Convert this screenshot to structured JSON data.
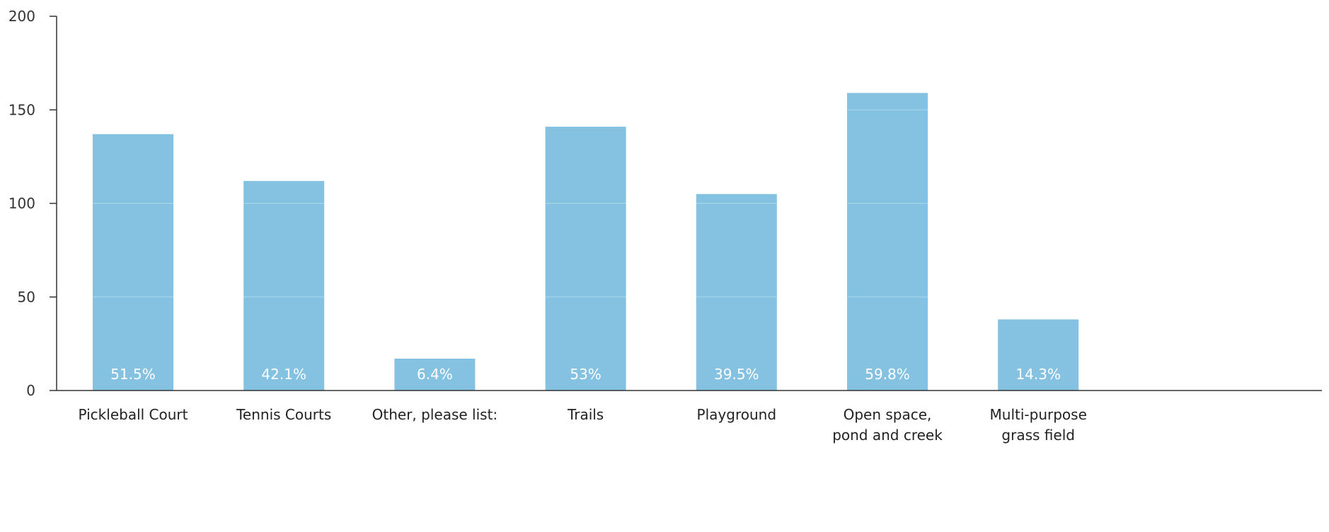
{
  "chart_data": {
    "type": "bar",
    "title": "",
    "xlabel": "",
    "ylabel": "",
    "ylim": [
      0,
      200
    ],
    "yticks": [
      0,
      50,
      100,
      150,
      200
    ],
    "grid": true,
    "legend": "none",
    "bar_color": "#85c2e1",
    "categories": [
      "Pickleball Court",
      "Tennis Courts",
      "Other, please list:",
      "Trails",
      "Playground",
      "Open space,\npond and creek",
      "Multi-purpose\ngrass field"
    ],
    "values": [
      137,
      112,
      17,
      141,
      105,
      159,
      38
    ],
    "data_labels": [
      "51.5%",
      "42.1%",
      "6.4%",
      "53%",
      "39.5%",
      "59.8%",
      "14.3%"
    ]
  }
}
